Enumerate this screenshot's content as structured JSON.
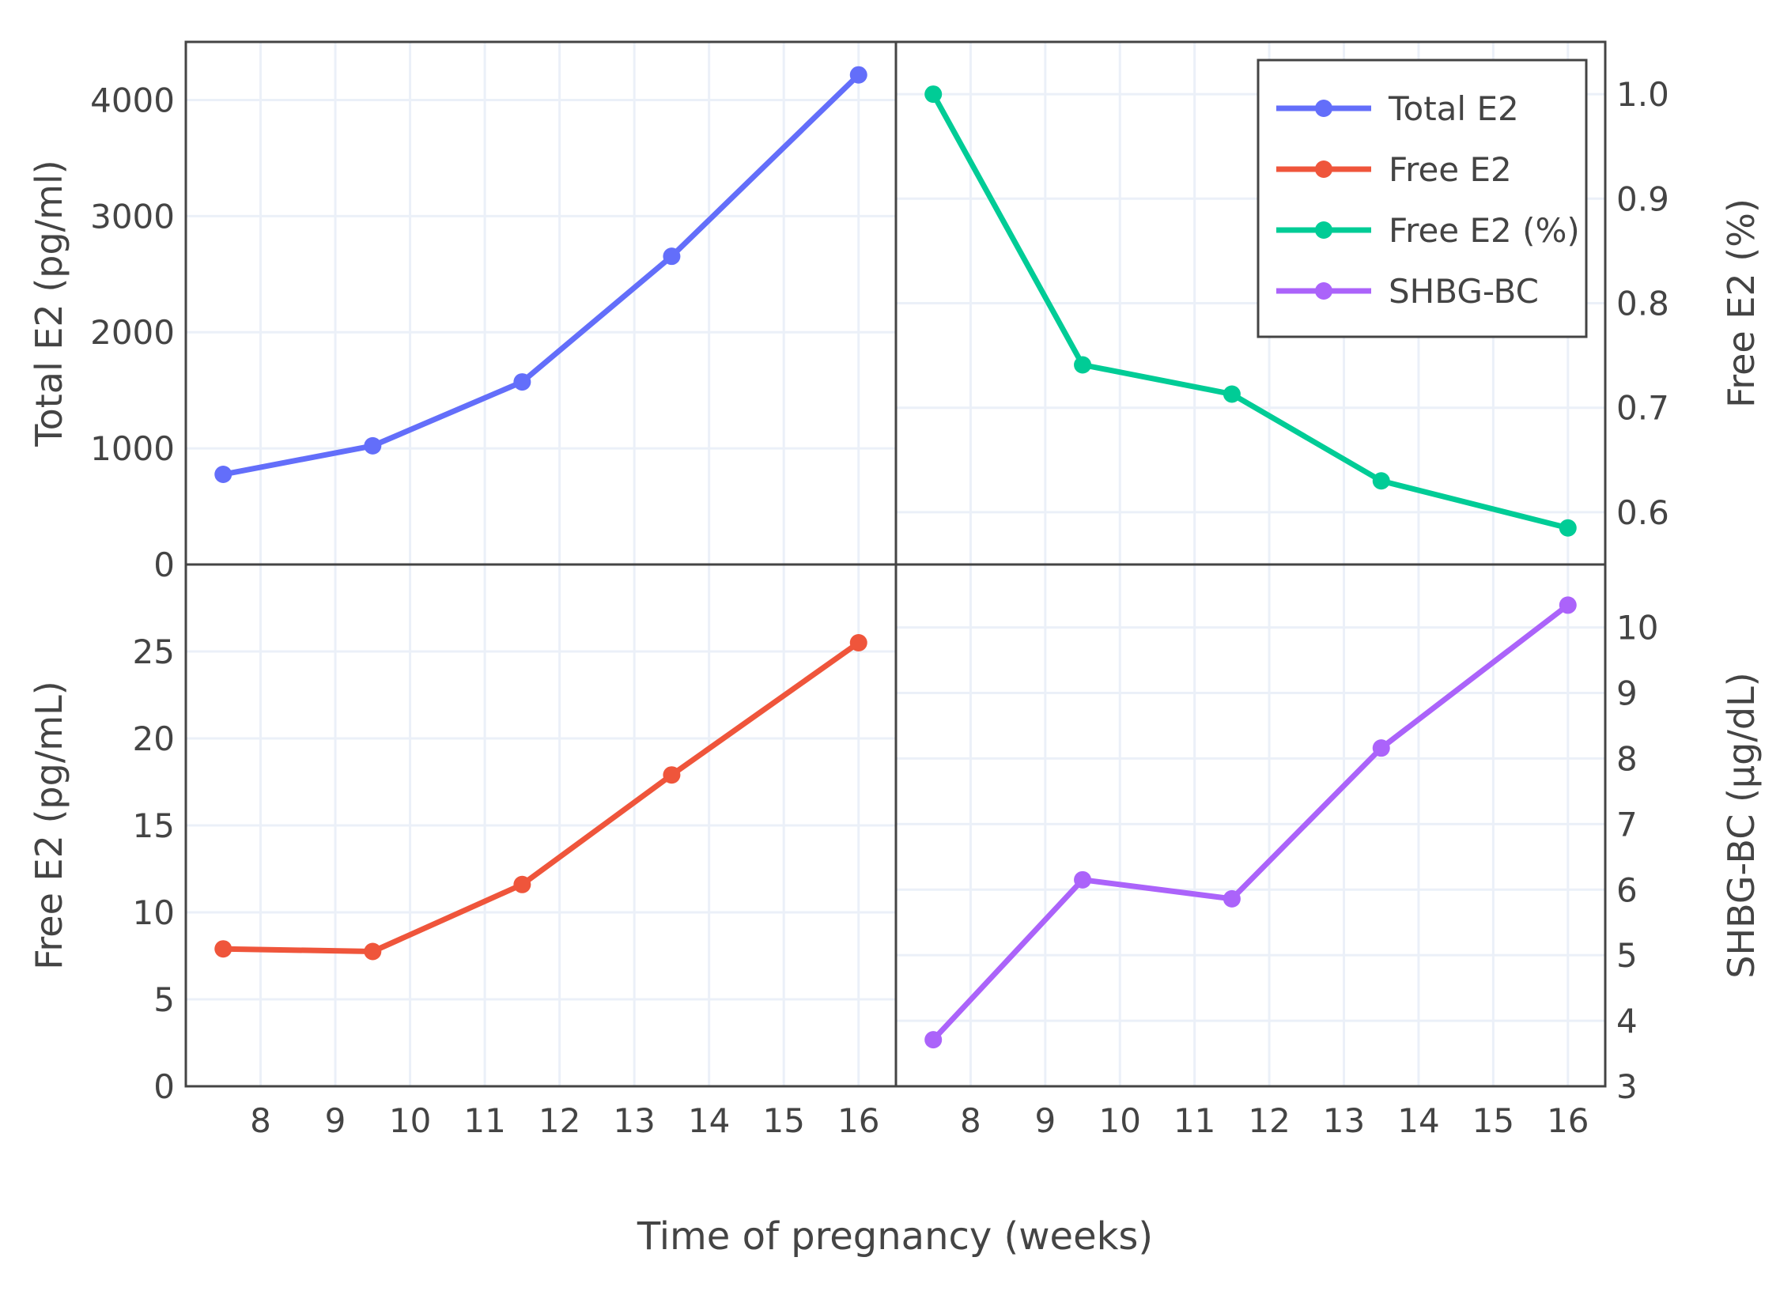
{
  "chart_data": {
    "type": "line",
    "layout": "2x2 subplots with shared x axis",
    "xlabel": "Time of pregnancy (weeks)",
    "xlim": [
      7,
      16.5
    ],
    "xticks": [
      8,
      9,
      10,
      11,
      12,
      13,
      14,
      15,
      16
    ],
    "grid": true,
    "legend_position": "top-right",
    "panels": [
      {
        "position": "top-left",
        "series_name": "Total E2",
        "color": "#636efa",
        "ylabel": "Total E2 (pg/ml)",
        "y_axis_side": "left",
        "ylim": [
          0,
          4500
        ],
        "yticks": [
          0,
          1000,
          2000,
          3000,
          4000
        ],
        "x": [
          7.5,
          9.5,
          11.5,
          13.5,
          16
        ],
        "y": [
          776,
          1022,
          1572,
          2654,
          4216
        ]
      },
      {
        "position": "top-right",
        "series_name": "Free E2 (%)",
        "color": "#00cc96",
        "ylabel": "Free E2 (%)",
        "y_axis_side": "right",
        "ylim": [
          0.55,
          1.05
        ],
        "yticks": [
          0.6,
          0.7,
          0.8,
          0.9,
          1.0
        ],
        "ytick_labels": [
          "0.6",
          "0.7",
          "0.8",
          "0.9",
          "1.0"
        ],
        "x": [
          7.5,
          9.5,
          11.5,
          13.5,
          16
        ],
        "y": [
          1.0,
          0.741,
          0.713,
          0.63,
          0.585
        ]
      },
      {
        "position": "bottom-left",
        "series_name": "Free E2",
        "color": "#ef553b",
        "ylabel": "Free E2 (pg/mL)",
        "y_axis_side": "left",
        "ylim": [
          0,
          30
        ],
        "yticks": [
          0,
          5,
          10,
          15,
          20,
          25
        ],
        "x": [
          7.5,
          9.5,
          11.5,
          13.5,
          16
        ],
        "y": [
          7.9,
          7.75,
          11.6,
          17.9,
          25.5
        ]
      },
      {
        "position": "bottom-right",
        "series_name": "SHBG-BC",
        "color": "#ab63fa",
        "ylabel": "SHBG-BC (µg/dL)",
        "y_axis_side": "right",
        "ylim": [
          3,
          10.96
        ],
        "yticks": [
          3,
          4,
          5,
          6,
          7,
          8,
          9,
          10
        ],
        "x": [
          7.5,
          9.5,
          11.5,
          13.5,
          16
        ],
        "y": [
          3.71,
          6.15,
          5.86,
          8.16,
          10.34
        ]
      }
    ],
    "legend": [
      {
        "name": "Total E2",
        "color": "#636efa"
      },
      {
        "name": "Free E2",
        "color": "#ef553b"
      },
      {
        "name": "Free E2 (%)",
        "color": "#00cc96"
      },
      {
        "name": "SHBG-BC",
        "color": "#ab63fa"
      }
    ]
  }
}
